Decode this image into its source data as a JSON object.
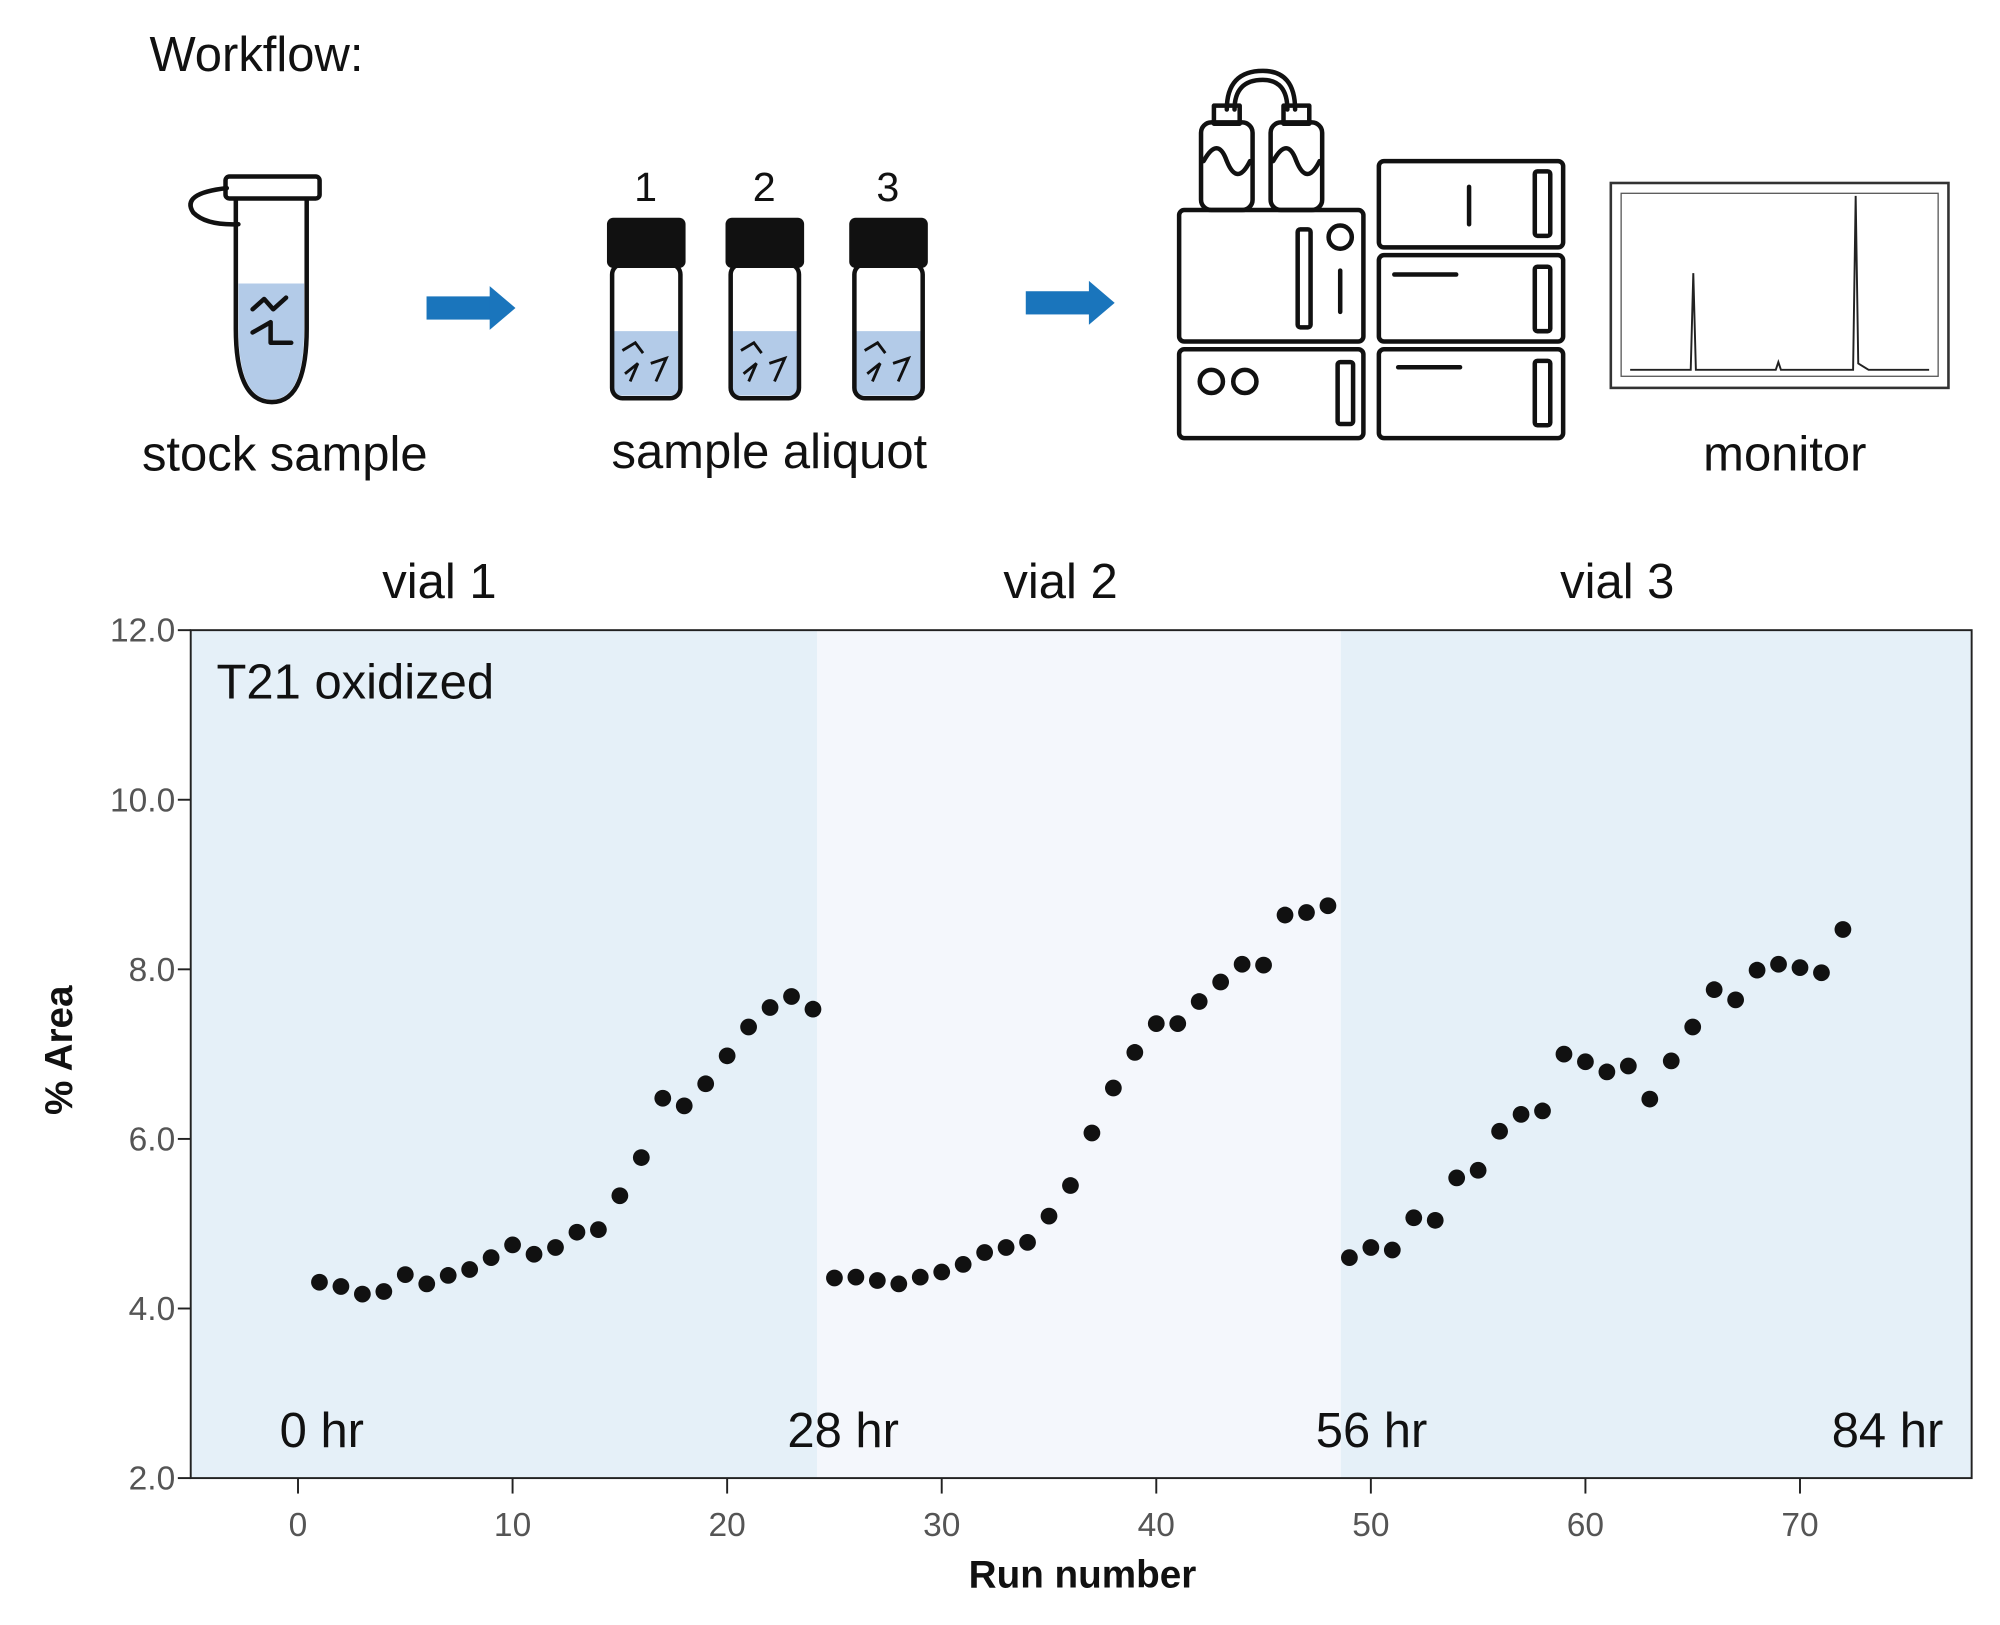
{
  "workflow": {
    "title": "Workflow:",
    "steps": [
      "stock sample",
      "sample aliquot",
      "monitor"
    ],
    "vials": [
      "1",
      "2",
      "3"
    ]
  },
  "chart_data": {
    "type": "scatter",
    "annotation": "T21 oxidized",
    "x_label": "Run number",
    "y_label": "% Area",
    "color": "#111111",
    "x": [
      1,
      2,
      3,
      4,
      5,
      6,
      7,
      8,
      9,
      10,
      11,
      12,
      13,
      14,
      15,
      16,
      17,
      18,
      19,
      20,
      21,
      22,
      23,
      24,
      25,
      26,
      27,
      28,
      29,
      30,
      31,
      32,
      33,
      34,
      35,
      36,
      37,
      38,
      39,
      40,
      41,
      42,
      43,
      44,
      45,
      46,
      47,
      48,
      49,
      50,
      51,
      52,
      53,
      54,
      55,
      56,
      57,
      58,
      59,
      60,
      61,
      62,
      63,
      64,
      65,
      66,
      67,
      68,
      69,
      70,
      71,
      72
    ],
    "values": [
      4.31,
      4.26,
      4.17,
      4.2,
      4.4,
      4.29,
      4.39,
      4.46,
      4.6,
      4.75,
      4.64,
      4.72,
      4.9,
      4.93,
      5.33,
      5.78,
      6.48,
      6.39,
      6.65,
      6.98,
      7.32,
      7.55,
      7.68,
      7.53,
      4.36,
      4.37,
      4.33,
      4.29,
      4.37,
      4.43,
      4.52,
      4.66,
      4.72,
      4.78,
      5.09,
      5.45,
      6.07,
      6.6,
      7.02,
      7.36,
      7.36,
      7.62,
      7.85,
      8.06,
      8.05,
      8.64,
      8.67,
      8.75,
      4.6,
      4.72,
      4.69,
      5.07,
      5.04,
      5.54,
      5.63,
      6.09,
      6.29,
      6.33,
      7.0,
      6.91,
      6.79,
      6.86,
      6.47,
      6.92,
      7.32,
      7.76,
      7.64,
      7.99,
      8.06,
      8.02,
      7.96,
      8.47
    ],
    "xlim": [
      -5,
      78
    ],
    "xticks": [
      0,
      10,
      20,
      30,
      40,
      50,
      60,
      70
    ],
    "ylim": [
      2,
      12
    ],
    "yticks": [
      {
        "value": 2,
        "label": "2.0"
      },
      {
        "value": 4,
        "label": "4.0"
      },
      {
        "value": 6,
        "label": "6.0"
      },
      {
        "value": 8,
        "label": "8.0"
      },
      {
        "value": 10,
        "label": "10.0"
      },
      {
        "value": 12,
        "label": "12.0"
      }
    ],
    "regions": [
      {
        "label": "vial 1",
        "color": "#e5f0f8"
      },
      {
        "label": "vial 2",
        "color": "#f4f7fc"
      },
      {
        "label": "vial 3",
        "color": "#e5f0f8"
      }
    ],
    "region_breaks": [
      24.2,
      48.6
    ],
    "time_labels": [
      "0 hr",
      "28 hr",
      "56 hr",
      "84 hr"
    ]
  }
}
